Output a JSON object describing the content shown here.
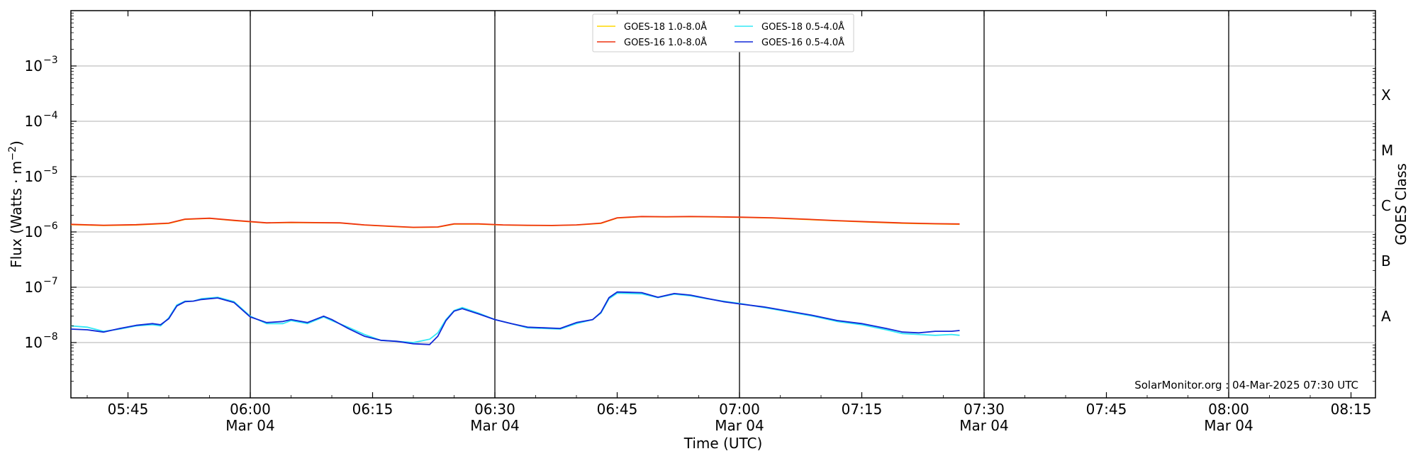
{
  "chart_data": {
    "type": "line",
    "title": "",
    "xlabel": "Time (UTC)",
    "ylabel_main": "Flux (Watts · m",
    "ylabel_sup": "−2",
    "ylabel_close": ")",
    "y2label": "GOES Class",
    "yscale": "log",
    "ylim": [
      1e-09,
      0.01
    ],
    "xlim": [
      "05:38",
      "08:18"
    ],
    "y_ticks": [
      {
        "value": 1e-08,
        "label": "10",
        "exp": "−8"
      },
      {
        "value": 1e-07,
        "label": "10",
        "exp": "−7"
      },
      {
        "value": 1e-06,
        "label": "10",
        "exp": "−6"
      },
      {
        "value": 1e-05,
        "label": "10",
        "exp": "−5"
      },
      {
        "value": 0.0001,
        "label": "10",
        "exp": "−4"
      },
      {
        "value": 0.001,
        "label": "10",
        "exp": "−3"
      }
    ],
    "x_ticks": [
      {
        "time": "05:45",
        "label": "05:45",
        "sub": ""
      },
      {
        "time": "06:00",
        "label": "06:00",
        "sub": "Mar 04"
      },
      {
        "time": "06:15",
        "label": "06:15",
        "sub": ""
      },
      {
        "time": "06:30",
        "label": "06:30",
        "sub": "Mar 04"
      },
      {
        "time": "06:45",
        "label": "06:45",
        "sub": ""
      },
      {
        "time": "07:00",
        "label": "07:00",
        "sub": "Mar 04"
      },
      {
        "time": "07:15",
        "label": "07:15",
        "sub": ""
      },
      {
        "time": "07:30",
        "label": "07:30",
        "sub": "Mar 04"
      },
      {
        "time": "07:45",
        "label": "07:45",
        "sub": ""
      },
      {
        "time": "08:00",
        "label": "08:00",
        "sub": "Mar 04"
      },
      {
        "time": "08:15",
        "label": "08:15",
        "sub": ""
      }
    ],
    "vertical_lines": [
      "06:00",
      "06:30",
      "07:00",
      "07:30",
      "08:00"
    ],
    "goes_classes": [
      {
        "label": "A",
        "flux": 3e-08
      },
      {
        "label": "B",
        "flux": 3e-07
      },
      {
        "label": "C",
        "flux": 3e-06
      },
      {
        "label": "M",
        "flux": 3e-05
      },
      {
        "label": "X",
        "flux": 0.0003
      }
    ],
    "grid": "horizontal-major",
    "legend_position": "top-center",
    "legend": [
      {
        "name": "GOES-18 1.0-8.0Å",
        "color": "#ffd700"
      },
      {
        "name": "GOES-16 1.0-8.0Å",
        "color": "#ee3311"
      },
      {
        "name": "GOES-18 0.5-4.0Å",
        "color": "#33e8f5"
      },
      {
        "name": "GOES-16 0.5-4.0Å",
        "color": "#1028d8"
      }
    ],
    "credit": "SolarMonitor.org : 04-Mar-2025 07:30 UTC",
    "series": [
      {
        "name": "GOES-18 1.0-8.0Å",
        "color": "#ffd700",
        "width": 1.6,
        "x": [
          "05:38",
          "05:42",
          "05:46",
          "05:50",
          "05:52",
          "05:55",
          "05:58",
          "06:02",
          "06:05",
          "06:08",
          "06:11",
          "06:14",
          "06:17",
          "06:20",
          "06:23",
          "06:25",
          "06:28",
          "06:31",
          "06:34",
          "06:37",
          "06:40",
          "06:43",
          "06:45",
          "06:48",
          "06:51",
          "06:54",
          "06:57",
          "07:00",
          "07:04",
          "07:08",
          "07:12",
          "07:16",
          "07:20",
          "07:24",
          "07:27"
        ],
        "values": [
          1.35e-06,
          1.3e-06,
          1.33e-06,
          1.42e-06,
          1.68e-06,
          1.75e-06,
          1.6e-06,
          1.45e-06,
          1.47e-06,
          1.46e-06,
          1.45e-06,
          1.33e-06,
          1.26e-06,
          1.2e-06,
          1.22e-06,
          1.38e-06,
          1.38e-06,
          1.33e-06,
          1.31e-06,
          1.3e-06,
          1.33e-06,
          1.42e-06,
          1.78e-06,
          1.88e-06,
          1.86e-06,
          1.88e-06,
          1.86e-06,
          1.83e-06,
          1.78e-06,
          1.68e-06,
          1.58e-06,
          1.5e-06,
          1.43e-06,
          1.39e-06,
          1.37e-06
        ]
      },
      {
        "name": "GOES-16 1.0-8.0Å",
        "color": "#ee3311",
        "width": 1.8,
        "x": [
          "05:38",
          "05:42",
          "05:46",
          "05:50",
          "05:52",
          "05:55",
          "05:58",
          "06:02",
          "06:05",
          "06:08",
          "06:11",
          "06:14",
          "06:17",
          "06:20",
          "06:23",
          "06:25",
          "06:28",
          "06:31",
          "06:34",
          "06:37",
          "06:40",
          "06:43",
          "06:45",
          "06:48",
          "06:51",
          "06:54",
          "06:57",
          "07:00",
          "07:04",
          "07:08",
          "07:12",
          "07:16",
          "07:20",
          "07:24",
          "07:27"
        ],
        "values": [
          1.37e-06,
          1.32e-06,
          1.35e-06,
          1.44e-06,
          1.7e-06,
          1.77e-06,
          1.62e-06,
          1.46e-06,
          1.49e-06,
          1.47e-06,
          1.46e-06,
          1.34e-06,
          1.27e-06,
          1.21e-06,
          1.23e-06,
          1.4e-06,
          1.4e-06,
          1.34e-06,
          1.32e-06,
          1.31e-06,
          1.34e-06,
          1.44e-06,
          1.8e-06,
          1.9e-06,
          1.88e-06,
          1.9e-06,
          1.88e-06,
          1.85e-06,
          1.8e-06,
          1.7e-06,
          1.6e-06,
          1.52e-06,
          1.45e-06,
          1.41e-06,
          1.39e-06
        ]
      },
      {
        "name": "GOES-18 0.5-4.0Å",
        "color": "#33e8f5",
        "width": 1.8,
        "x": [
          "05:38",
          "05:40",
          "05:42",
          "05:44",
          "05:46",
          "05:48",
          "05:49",
          "05:50",
          "05:51",
          "05:52",
          "05:53",
          "05:54",
          "05:56",
          "05:58",
          "06:00",
          "06:02",
          "06:04",
          "06:05",
          "06:07",
          "06:09",
          "06:10",
          "06:12",
          "06:14",
          "06:16",
          "06:18",
          "06:20",
          "06:22",
          "06:23",
          "06:24",
          "06:25",
          "06:26",
          "06:28",
          "06:30",
          "06:32",
          "06:34",
          "06:36",
          "06:38",
          "06:40",
          "06:42",
          "06:43",
          "06:44",
          "06:45",
          "06:48",
          "06:50",
          "06:52",
          "06:54",
          "06:56",
          "06:58",
          "07:00",
          "07:03",
          "07:06",
          "07:09",
          "07:12",
          "07:15",
          "07:18",
          "07:20",
          "07:22",
          "07:24",
          "07:26",
          "07:27"
        ],
        "values": [
          2e-08,
          1.9e-08,
          1.6e-08,
          1.75e-08,
          2e-08,
          2.1e-08,
          2e-08,
          2.8e-08,
          4.8e-08,
          5.6e-08,
          5.6e-08,
          6.2e-08,
          6.6e-08,
          5.5e-08,
          3e-08,
          2.2e-08,
          2.2e-08,
          2.5e-08,
          2.2e-08,
          2.9e-08,
          2.5e-08,
          1.9e-08,
          1.4e-08,
          1.1e-08,
          1.05e-08,
          1e-08,
          1.15e-08,
          1.5e-08,
          2.6e-08,
          3.8e-08,
          4.3e-08,
          3.4e-08,
          2.6e-08,
          2.2e-08,
          1.85e-08,
          1.8e-08,
          1.75e-08,
          2.2e-08,
          2.6e-08,
          3.4e-08,
          6.2e-08,
          7.8e-08,
          7.6e-08,
          6.5e-08,
          7.5e-08,
          7e-08,
          6.2e-08,
          5.6e-08,
          5.1e-08,
          4.3e-08,
          3.6e-08,
          3e-08,
          2.4e-08,
          2.1e-08,
          1.7e-08,
          1.45e-08,
          1.4e-08,
          1.35e-08,
          1.4e-08,
          1.35e-08
        ]
      },
      {
        "name": "GOES-16 0.5-4.0Å",
        "color": "#1028d8",
        "width": 1.8,
        "x": [
          "05:38",
          "05:40",
          "05:42",
          "05:44",
          "05:46",
          "05:48",
          "05:49",
          "05:50",
          "05:51",
          "05:52",
          "05:53",
          "05:54",
          "05:56",
          "05:58",
          "06:00",
          "06:02",
          "06:04",
          "06:05",
          "06:07",
          "06:09",
          "06:10",
          "06:12",
          "06:14",
          "06:16",
          "06:18",
          "06:20",
          "06:22",
          "06:23",
          "06:24",
          "06:25",
          "06:26",
          "06:28",
          "06:30",
          "06:32",
          "06:34",
          "06:36",
          "06:38",
          "06:40",
          "06:42",
          "06:43",
          "06:44",
          "06:45",
          "06:48",
          "06:50",
          "06:52",
          "06:54",
          "06:56",
          "06:58",
          "07:00",
          "07:03",
          "07:06",
          "07:09",
          "07:12",
          "07:15",
          "07:18",
          "07:20",
          "07:22",
          "07:24",
          "07:26",
          "07:27"
        ],
        "values": [
          1.75e-08,
          1.7e-08,
          1.55e-08,
          1.8e-08,
          2.05e-08,
          2.2e-08,
          2.1e-08,
          2.7e-08,
          4.6e-08,
          5.5e-08,
          5.6e-08,
          6e-08,
          6.4e-08,
          5.3e-08,
          2.9e-08,
          2.3e-08,
          2.4e-08,
          2.6e-08,
          2.3e-08,
          3e-08,
          2.6e-08,
          1.8e-08,
          1.3e-08,
          1.1e-08,
          1.05e-08,
          9.5e-09,
          9.2e-09,
          1.3e-08,
          2.5e-08,
          3.7e-08,
          4.1e-08,
          3.3e-08,
          2.6e-08,
          2.2e-08,
          1.9e-08,
          1.85e-08,
          1.8e-08,
          2.3e-08,
          2.6e-08,
          3.5e-08,
          6.5e-08,
          8.2e-08,
          8e-08,
          6.6e-08,
          7.7e-08,
          7.2e-08,
          6.3e-08,
          5.5e-08,
          5e-08,
          4.4e-08,
          3.7e-08,
          3.1e-08,
          2.5e-08,
          2.2e-08,
          1.8e-08,
          1.55e-08,
          1.5e-08,
          1.6e-08,
          1.6e-08,
          1.65e-08
        ]
      }
    ]
  }
}
